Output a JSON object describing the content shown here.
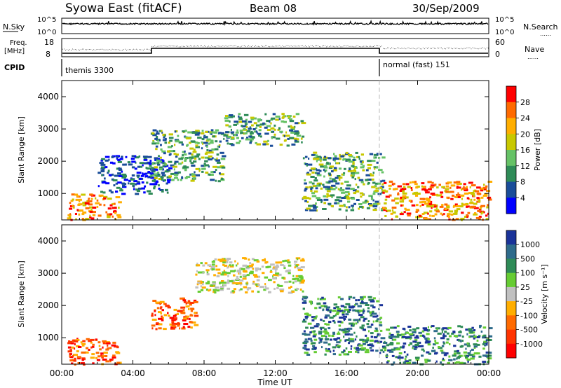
{
  "header": {
    "site": "Syowa East (fitACF)",
    "beam": "Beam 08",
    "date": "30/Sep/2009"
  },
  "noise_panel": {
    "left_label": "N.Sky",
    "right_label": "N.Search",
    "right_legend_line": "……",
    "y_ticks": [
      "10^5",
      "10^0"
    ]
  },
  "freq_panel": {
    "left_label_1": "Freq.",
    "left_label_2": "[MHz]",
    "left_ticks": [
      "18",
      "8"
    ],
    "right_ticks": [
      "60",
      "0"
    ],
    "right_label": "Nave",
    "right_legend_line": "……"
  },
  "cpid": {
    "label": "CPID",
    "modes": [
      {
        "name": "themis 3300",
        "start_hour": 0
      },
      {
        "name": "normal (fast) 151",
        "start_hour": 18
      }
    ]
  },
  "x_axis": {
    "label": "Time UT",
    "ticks": [
      "00:00",
      "04:00",
      "08:00",
      "12:00",
      "16:00",
      "20:00",
      "00:00"
    ],
    "range_hours": [
      0,
      24
    ]
  },
  "chart_data": [
    {
      "type": "heatmap",
      "name": "power",
      "ylabel": "Slant Range [km]",
      "ylim": [
        180,
        4500
      ],
      "yticks": [
        "1000",
        "2000",
        "3000",
        "4000"
      ],
      "colorbar_label": "Power [dB]",
      "colorbar_ticks": [
        "28",
        "24",
        "20",
        "16",
        "12",
        "8",
        "4"
      ],
      "colorbar_colors": [
        "#ff0000",
        "#ff6a00",
        "#ffae00",
        "#c8c800",
        "#66c266",
        "#2e8b57",
        "#1a4d99",
        "#0000ff"
      ],
      "data_regions": [
        {
          "t0": 0.3,
          "t1": 3.2,
          "r0": 200,
          "r1": 1000,
          "level": "high"
        },
        {
          "t0": 2.0,
          "t1": 6.0,
          "r0": 1000,
          "r1": 2200,
          "level": "low"
        },
        {
          "t0": 5.0,
          "t1": 9.0,
          "r0": 1400,
          "r1": 3000,
          "level": "mid"
        },
        {
          "t0": 9.0,
          "t1": 13.5,
          "r0": 2500,
          "r1": 3500,
          "level": "mid"
        },
        {
          "t0": 13.5,
          "t1": 18.0,
          "r0": 500,
          "r1": 2300,
          "level": "mid"
        },
        {
          "t0": 18.0,
          "t1": 24.0,
          "r0": 200,
          "r1": 1400,
          "level": "high"
        }
      ]
    },
    {
      "type": "heatmap",
      "name": "velocity",
      "ylabel": "Slant Range [km]",
      "ylim": [
        180,
        4500
      ],
      "yticks": [
        "1000",
        "2000",
        "3000",
        "4000"
      ],
      "colorbar_label": "Velocity [m s⁻¹]",
      "colorbar_ticks": [
        "1000",
        "500",
        "100",
        "25",
        "-25",
        "-100",
        "-500",
        "-1000"
      ],
      "colorbar_colors": [
        "#1a3399",
        "#2e6b8b",
        "#2e8b57",
        "#66cc33",
        "#c0c0c0",
        "#ffae00",
        "#ff6a00",
        "#ff3300",
        "#ff0000"
      ],
      "data_regions": [
        {
          "t0": 0.3,
          "t1": 3.2,
          "r0": 200,
          "r1": 1000,
          "level": "neg"
        },
        {
          "t0": 5.0,
          "t1": 7.5,
          "r0": 1300,
          "r1": 2300,
          "level": "neg"
        },
        {
          "t0": 7.5,
          "t1": 13.5,
          "r0": 2400,
          "r1": 3500,
          "level": "zero"
        },
        {
          "t0": 13.5,
          "t1": 18.0,
          "r0": 500,
          "r1": 2300,
          "level": "pos"
        },
        {
          "t0": 18.0,
          "t1": 24.0,
          "r0": 200,
          "r1": 1400,
          "level": "pos"
        }
      ]
    }
  ]
}
